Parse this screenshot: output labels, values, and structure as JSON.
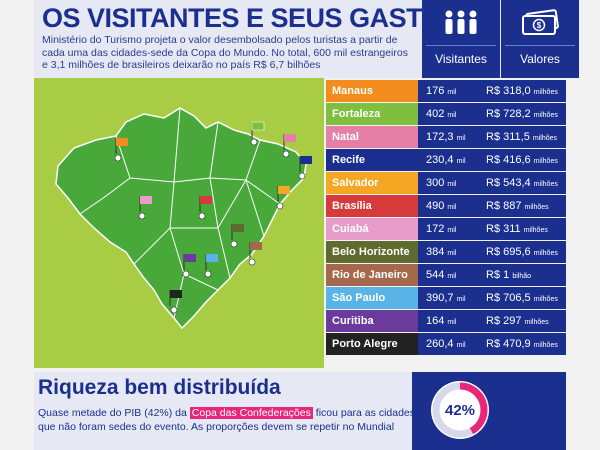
{
  "header": {
    "title": "OS VISITANTES E SEUS GASTOS",
    "intro": "Ministério do Turismo projeta o valor desembolsado pelos turistas a partir de cada uma das cidades-sede da Copa do Mundo. No total, 600 mil estrangeiros e 3,1 milhões de brasileiros deixarão no país R$ 6,7 bilhões",
    "col_visitors": "Visitantes",
    "col_values": "Valores"
  },
  "icons": {
    "visitors": "people-icon",
    "values": "money-icon"
  },
  "chart_data": {
    "type": "table",
    "columns": [
      "Visitantes",
      "Valores"
    ],
    "rows": [
      {
        "city": "Manaus",
        "visitors": "176",
        "visitors_unit": "mil",
        "value": "R$ 318,0",
        "value_unit": "milhões",
        "color": "#f28c1e"
      },
      {
        "city": "Fortaleza",
        "visitors": "402",
        "visitors_unit": "mil",
        "value": "R$ 728,2",
        "value_unit": "milhões",
        "color": "#7fbf3f"
      },
      {
        "city": "Natal",
        "visitors": "172,3",
        "visitors_unit": "mil",
        "value": "R$ 311,5",
        "value_unit": "milhões",
        "color": "#e67fa6"
      },
      {
        "city": "Recife",
        "visitors": "230,4",
        "visitors_unit": "mil",
        "value": "R$ 416,6",
        "value_unit": "milhões",
        "color": "#1b2f8f"
      },
      {
        "city": "Salvador",
        "visitors": "300",
        "visitors_unit": "mil",
        "value": "R$ 543,4",
        "value_unit": "milhões",
        "color": "#f5a623"
      },
      {
        "city": "Brasília",
        "visitors": "490",
        "visitors_unit": "mil",
        "value": "R$ 887",
        "value_unit": "milhões",
        "color": "#d63a3a"
      },
      {
        "city": "Cuiabá",
        "visitors": "172",
        "visitors_unit": "mil",
        "value": "R$ 311",
        "value_unit": "milhões",
        "color": "#e79cc9"
      },
      {
        "city": "Belo Horizonte",
        "visitors": "384",
        "visitors_unit": "mil",
        "value": "R$ 695,6",
        "value_unit": "milhões",
        "color": "#5d6b2e"
      },
      {
        "city": "Rio de Janeiro",
        "visitors": "544",
        "visitors_unit": "mil",
        "value": "R$ 1",
        "value_unit": "bilhão",
        "color": "#a5684a"
      },
      {
        "city": "São Paulo",
        "visitors": "390,7",
        "visitors_unit": "mil",
        "value": "R$ 706,5",
        "value_unit": "milhões",
        "color": "#5ab3e6"
      },
      {
        "city": "Curitiba",
        "visitors": "164",
        "visitors_unit": "mil",
        "value": "R$ 297",
        "value_unit": "milhões",
        "color": "#6a3b9c"
      },
      {
        "city": "Porto Alegre",
        "visitors": "260,4",
        "visitors_unit": "mil",
        "value": "R$ 470,9",
        "value_unit": "milhões",
        "color": "#222222"
      }
    ]
  },
  "bottom": {
    "title": "Riqueza bem distribuída",
    "text_before": "Quase metade do PIB (42%) da ",
    "highlight": "Copa das Confederações",
    "text_after": " ficou para as cidades que não foram sedes do evento. As proporções devem se repetir no Mundial",
    "gauge_label": "42%",
    "gauge_value": 42,
    "gauge_color": "#e8267a"
  }
}
